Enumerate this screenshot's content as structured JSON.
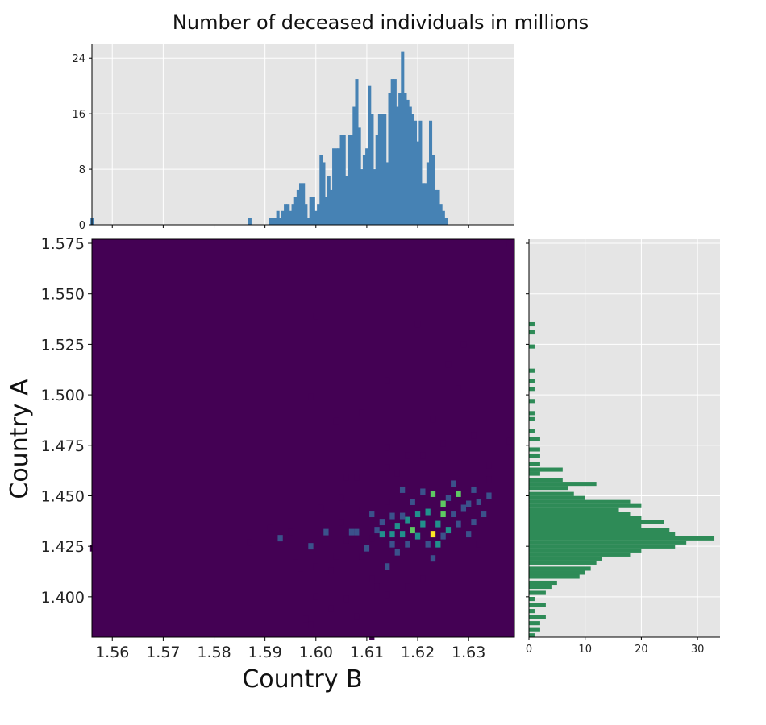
{
  "chart_data": [
    {
      "type": "heatmap",
      "panel": "joint",
      "title": "Number of deceased individuals in millions",
      "xlabel": "Country B",
      "ylabel": "Country A",
      "xlim": [
        1.556,
        1.639
      ],
      "ylim": [
        1.38,
        1.577
      ],
      "xticks": [
        "1.56",
        "1.57",
        "1.58",
        "1.59",
        "1.60",
        "1.61",
        "1.62",
        "1.63"
      ],
      "yticks": [
        "1.400",
        "1.425",
        "1.450",
        "1.475",
        "1.500",
        "1.525",
        "1.550",
        "1.575"
      ],
      "cells": [
        [
          1.556,
          1.424,
          2
        ],
        [
          1.587,
          1.427,
          2
        ],
        [
          1.591,
          1.434,
          2
        ],
        [
          1.593,
          1.429,
          3
        ],
        [
          1.595,
          1.432,
          2
        ],
        [
          1.596,
          1.42,
          2
        ],
        [
          1.597,
          1.411,
          2
        ],
        [
          1.599,
          1.425,
          3
        ],
        [
          1.6,
          1.415,
          2
        ],
        [
          1.601,
          1.444,
          2
        ],
        [
          1.602,
          1.432,
          3
        ],
        [
          1.603,
          1.413,
          2
        ],
        [
          1.604,
          1.42,
          2
        ],
        [
          1.605,
          1.437,
          2
        ],
        [
          1.605,
          1.449,
          2
        ],
        [
          1.606,
          1.428,
          2
        ],
        [
          1.607,
          1.432,
          4
        ],
        [
          1.608,
          1.432,
          8
        ],
        [
          1.609,
          1.443,
          2
        ],
        [
          1.609,
          1.42,
          2
        ],
        [
          1.61,
          1.424,
          3
        ],
        [
          1.611,
          1.429,
          2
        ],
        [
          1.611,
          1.441,
          5
        ],
        [
          1.612,
          1.433,
          8
        ],
        [
          1.613,
          1.431,
          10
        ],
        [
          1.613,
          1.437,
          4
        ],
        [
          1.614,
          1.415,
          6
        ],
        [
          1.614,
          1.447,
          2
        ],
        [
          1.615,
          1.426,
          8
        ],
        [
          1.615,
          1.431,
          11
        ],
        [
          1.615,
          1.44,
          6
        ],
        [
          1.616,
          1.435,
          9
        ],
        [
          1.616,
          1.422,
          4
        ],
        [
          1.617,
          1.431,
          12
        ],
        [
          1.617,
          1.453,
          5
        ],
        [
          1.617,
          1.44,
          7
        ],
        [
          1.618,
          1.438,
          12
        ],
        [
          1.618,
          1.426,
          6
        ],
        [
          1.619,
          1.433,
          14
        ],
        [
          1.619,
          1.447,
          4
        ],
        [
          1.62,
          1.43,
          13
        ],
        [
          1.62,
          1.441,
          10
        ],
        [
          1.621,
          1.436,
          11
        ],
        [
          1.621,
          1.452,
          4
        ],
        [
          1.622,
          1.426,
          8
        ],
        [
          1.622,
          1.442,
          9
        ],
        [
          1.623,
          1.431,
          22
        ],
        [
          1.623,
          1.451,
          15
        ],
        [
          1.623,
          1.419,
          4
        ],
        [
          1.624,
          1.436,
          11
        ],
        [
          1.624,
          1.426,
          9
        ],
        [
          1.625,
          1.441,
          16
        ],
        [
          1.625,
          1.446,
          14
        ],
        [
          1.625,
          1.43,
          7
        ],
        [
          1.626,
          1.433,
          10
        ],
        [
          1.626,
          1.449,
          8
        ],
        [
          1.627,
          1.441,
          7
        ],
        [
          1.627,
          1.456,
          5
        ],
        [
          1.628,
          1.451,
          16
        ],
        [
          1.628,
          1.436,
          6
        ],
        [
          1.629,
          1.444,
          7
        ],
        [
          1.63,
          1.446,
          5
        ],
        [
          1.63,
          1.431,
          4
        ],
        [
          1.631,
          1.453,
          7
        ],
        [
          1.631,
          1.437,
          4
        ],
        [
          1.632,
          1.447,
          8
        ],
        [
          1.632,
          1.426,
          2
        ],
        [
          1.633,
          1.441,
          3
        ],
        [
          1.634,
          1.45,
          4
        ],
        [
          1.634,
          1.458,
          2
        ],
        [
          1.6,
          1.539,
          2
        ],
        [
          1.62,
          1.535,
          2
        ],
        [
          1.626,
          1.515,
          2
        ],
        [
          1.629,
          1.525,
          2
        ],
        [
          1.614,
          1.507,
          2
        ],
        [
          1.628,
          1.503,
          2
        ],
        [
          1.609,
          1.491,
          2
        ],
        [
          1.599,
          1.499,
          2
        ],
        [
          1.604,
          1.487,
          2
        ],
        [
          1.623,
          1.488,
          2
        ],
        [
          1.631,
          1.48,
          2
        ],
        [
          1.638,
          1.477,
          2
        ],
        [
          1.614,
          1.474,
          2
        ],
        [
          1.618,
          1.47,
          2
        ],
        [
          1.621,
          1.47,
          2
        ],
        [
          1.625,
          1.476,
          2
        ],
        [
          1.634,
          1.465,
          2
        ],
        [
          1.606,
          1.459,
          2
        ],
        [
          1.608,
          1.459,
          2
        ],
        [
          1.614,
          1.464,
          2
        ],
        [
          1.616,
          1.461,
          2
        ],
        [
          1.638,
          1.575,
          2
        ],
        [
          1.6,
          1.4,
          2
        ],
        [
          1.603,
          1.394,
          2
        ],
        [
          1.598,
          1.389,
          2
        ],
        [
          1.599,
          1.386,
          2
        ],
        [
          1.614,
          1.401,
          2
        ],
        [
          1.612,
          1.405,
          2
        ],
        [
          1.608,
          1.39,
          2
        ],
        [
          1.611,
          1.38,
          2
        ],
        [
          1.606,
          1.399,
          2
        ],
        [
          1.618,
          1.405,
          2
        ],
        [
          1.621,
          1.409,
          2
        ],
        [
          1.611,
          1.409,
          2
        ]
      ],
      "colormap": [
        "#440154",
        "#3b528b",
        "#21918c",
        "#5ec962",
        "#fde725"
      ]
    },
    {
      "type": "bar",
      "panel": "marginal-top",
      "ylim": [
        0,
        26
      ],
      "yticks": [
        "0",
        "8",
        "16",
        "24"
      ],
      "bin_width": 0.0005,
      "color": "#4682b4",
      "bins": [
        [
          1.556,
          1
        ],
        [
          1.587,
          1
        ],
        [
          1.591,
          1
        ],
        [
          1.5915,
          1
        ],
        [
          1.592,
          1
        ],
        [
          1.5925,
          2
        ],
        [
          1.593,
          1
        ],
        [
          1.5935,
          2
        ],
        [
          1.594,
          3
        ],
        [
          1.5945,
          3
        ],
        [
          1.595,
          2
        ],
        [
          1.5955,
          3
        ],
        [
          1.596,
          4
        ],
        [
          1.5965,
          5
        ],
        [
          1.597,
          6
        ],
        [
          1.5975,
          6
        ],
        [
          1.598,
          3
        ],
        [
          1.5985,
          1
        ],
        [
          1.599,
          4
        ],
        [
          1.5995,
          4
        ],
        [
          1.6,
          2
        ],
        [
          1.6005,
          3
        ],
        [
          1.601,
          10
        ],
        [
          1.6015,
          9
        ],
        [
          1.602,
          4
        ],
        [
          1.6025,
          7
        ],
        [
          1.603,
          5
        ],
        [
          1.6035,
          11
        ],
        [
          1.604,
          11
        ],
        [
          1.6045,
          11
        ],
        [
          1.605,
          13
        ],
        [
          1.6055,
          13
        ],
        [
          1.606,
          7
        ],
        [
          1.6065,
          13
        ],
        [
          1.607,
          13
        ],
        [
          1.6075,
          17
        ],
        [
          1.608,
          21
        ],
        [
          1.6085,
          14
        ],
        [
          1.609,
          8
        ],
        [
          1.6095,
          10
        ],
        [
          1.61,
          11
        ],
        [
          1.6105,
          20
        ],
        [
          1.611,
          16
        ],
        [
          1.6115,
          8
        ],
        [
          1.612,
          13
        ],
        [
          1.6125,
          16
        ],
        [
          1.613,
          16
        ],
        [
          1.6135,
          16
        ],
        [
          1.614,
          9
        ],
        [
          1.6145,
          19
        ],
        [
          1.615,
          21
        ],
        [
          1.6155,
          21
        ],
        [
          1.616,
          17
        ],
        [
          1.6165,
          19
        ],
        [
          1.617,
          25
        ],
        [
          1.6175,
          19
        ],
        [
          1.618,
          18
        ],
        [
          1.6185,
          17
        ],
        [
          1.619,
          16
        ],
        [
          1.6195,
          15
        ],
        [
          1.62,
          12
        ],
        [
          1.6205,
          15
        ],
        [
          1.621,
          6
        ],
        [
          1.6215,
          6
        ],
        [
          1.622,
          9
        ],
        [
          1.6225,
          15
        ],
        [
          1.623,
          10
        ],
        [
          1.6235,
          5
        ],
        [
          1.624,
          5
        ],
        [
          1.6245,
          3
        ],
        [
          1.625,
          2
        ],
        [
          1.6255,
          1
        ]
      ]
    },
    {
      "type": "bar",
      "panel": "marginal-right",
      "orientation": "horizontal",
      "xlim": [
        0,
        34
      ],
      "xticks": [
        "0",
        "10",
        "20",
        "30"
      ],
      "bin_width": 0.0015,
      "color": "#2e8b57",
      "bins": [
        [
          1.381,
          1
        ],
        [
          1.384,
          2
        ],
        [
          1.387,
          2
        ],
        [
          1.39,
          3
        ],
        [
          1.393,
          1
        ],
        [
          1.396,
          3
        ],
        [
          1.399,
          1
        ],
        [
          1.402,
          3
        ],
        [
          1.405,
          4
        ],
        [
          1.407,
          5
        ],
        [
          1.41,
          9
        ],
        [
          1.412,
          10
        ],
        [
          1.414,
          11
        ],
        [
          1.417,
          12
        ],
        [
          1.419,
          13
        ],
        [
          1.421,
          18
        ],
        [
          1.423,
          20
        ],
        [
          1.425,
          26
        ],
        [
          1.427,
          28
        ],
        [
          1.429,
          33
        ],
        [
          1.431,
          26
        ],
        [
          1.433,
          25
        ],
        [
          1.435,
          20
        ],
        [
          1.437,
          24
        ],
        [
          1.439,
          20
        ],
        [
          1.441,
          18
        ],
        [
          1.443,
          16
        ],
        [
          1.445,
          20
        ],
        [
          1.447,
          18
        ],
        [
          1.449,
          10
        ],
        [
          1.451,
          8
        ],
        [
          1.454,
          7
        ],
        [
          1.456,
          12
        ],
        [
          1.458,
          6
        ],
        [
          1.461,
          2
        ],
        [
          1.463,
          6
        ],
        [
          1.466,
          2
        ],
        [
          1.47,
          2
        ],
        [
          1.473,
          2
        ],
        [
          1.478,
          2
        ],
        [
          1.482,
          1
        ],
        [
          1.488,
          1
        ],
        [
          1.491,
          1
        ],
        [
          1.497,
          1
        ],
        [
          1.503,
          1
        ],
        [
          1.507,
          1
        ],
        [
          1.512,
          1
        ],
        [
          1.524,
          1
        ],
        [
          1.531,
          1
        ],
        [
          1.535,
          1
        ]
      ]
    }
  ]
}
